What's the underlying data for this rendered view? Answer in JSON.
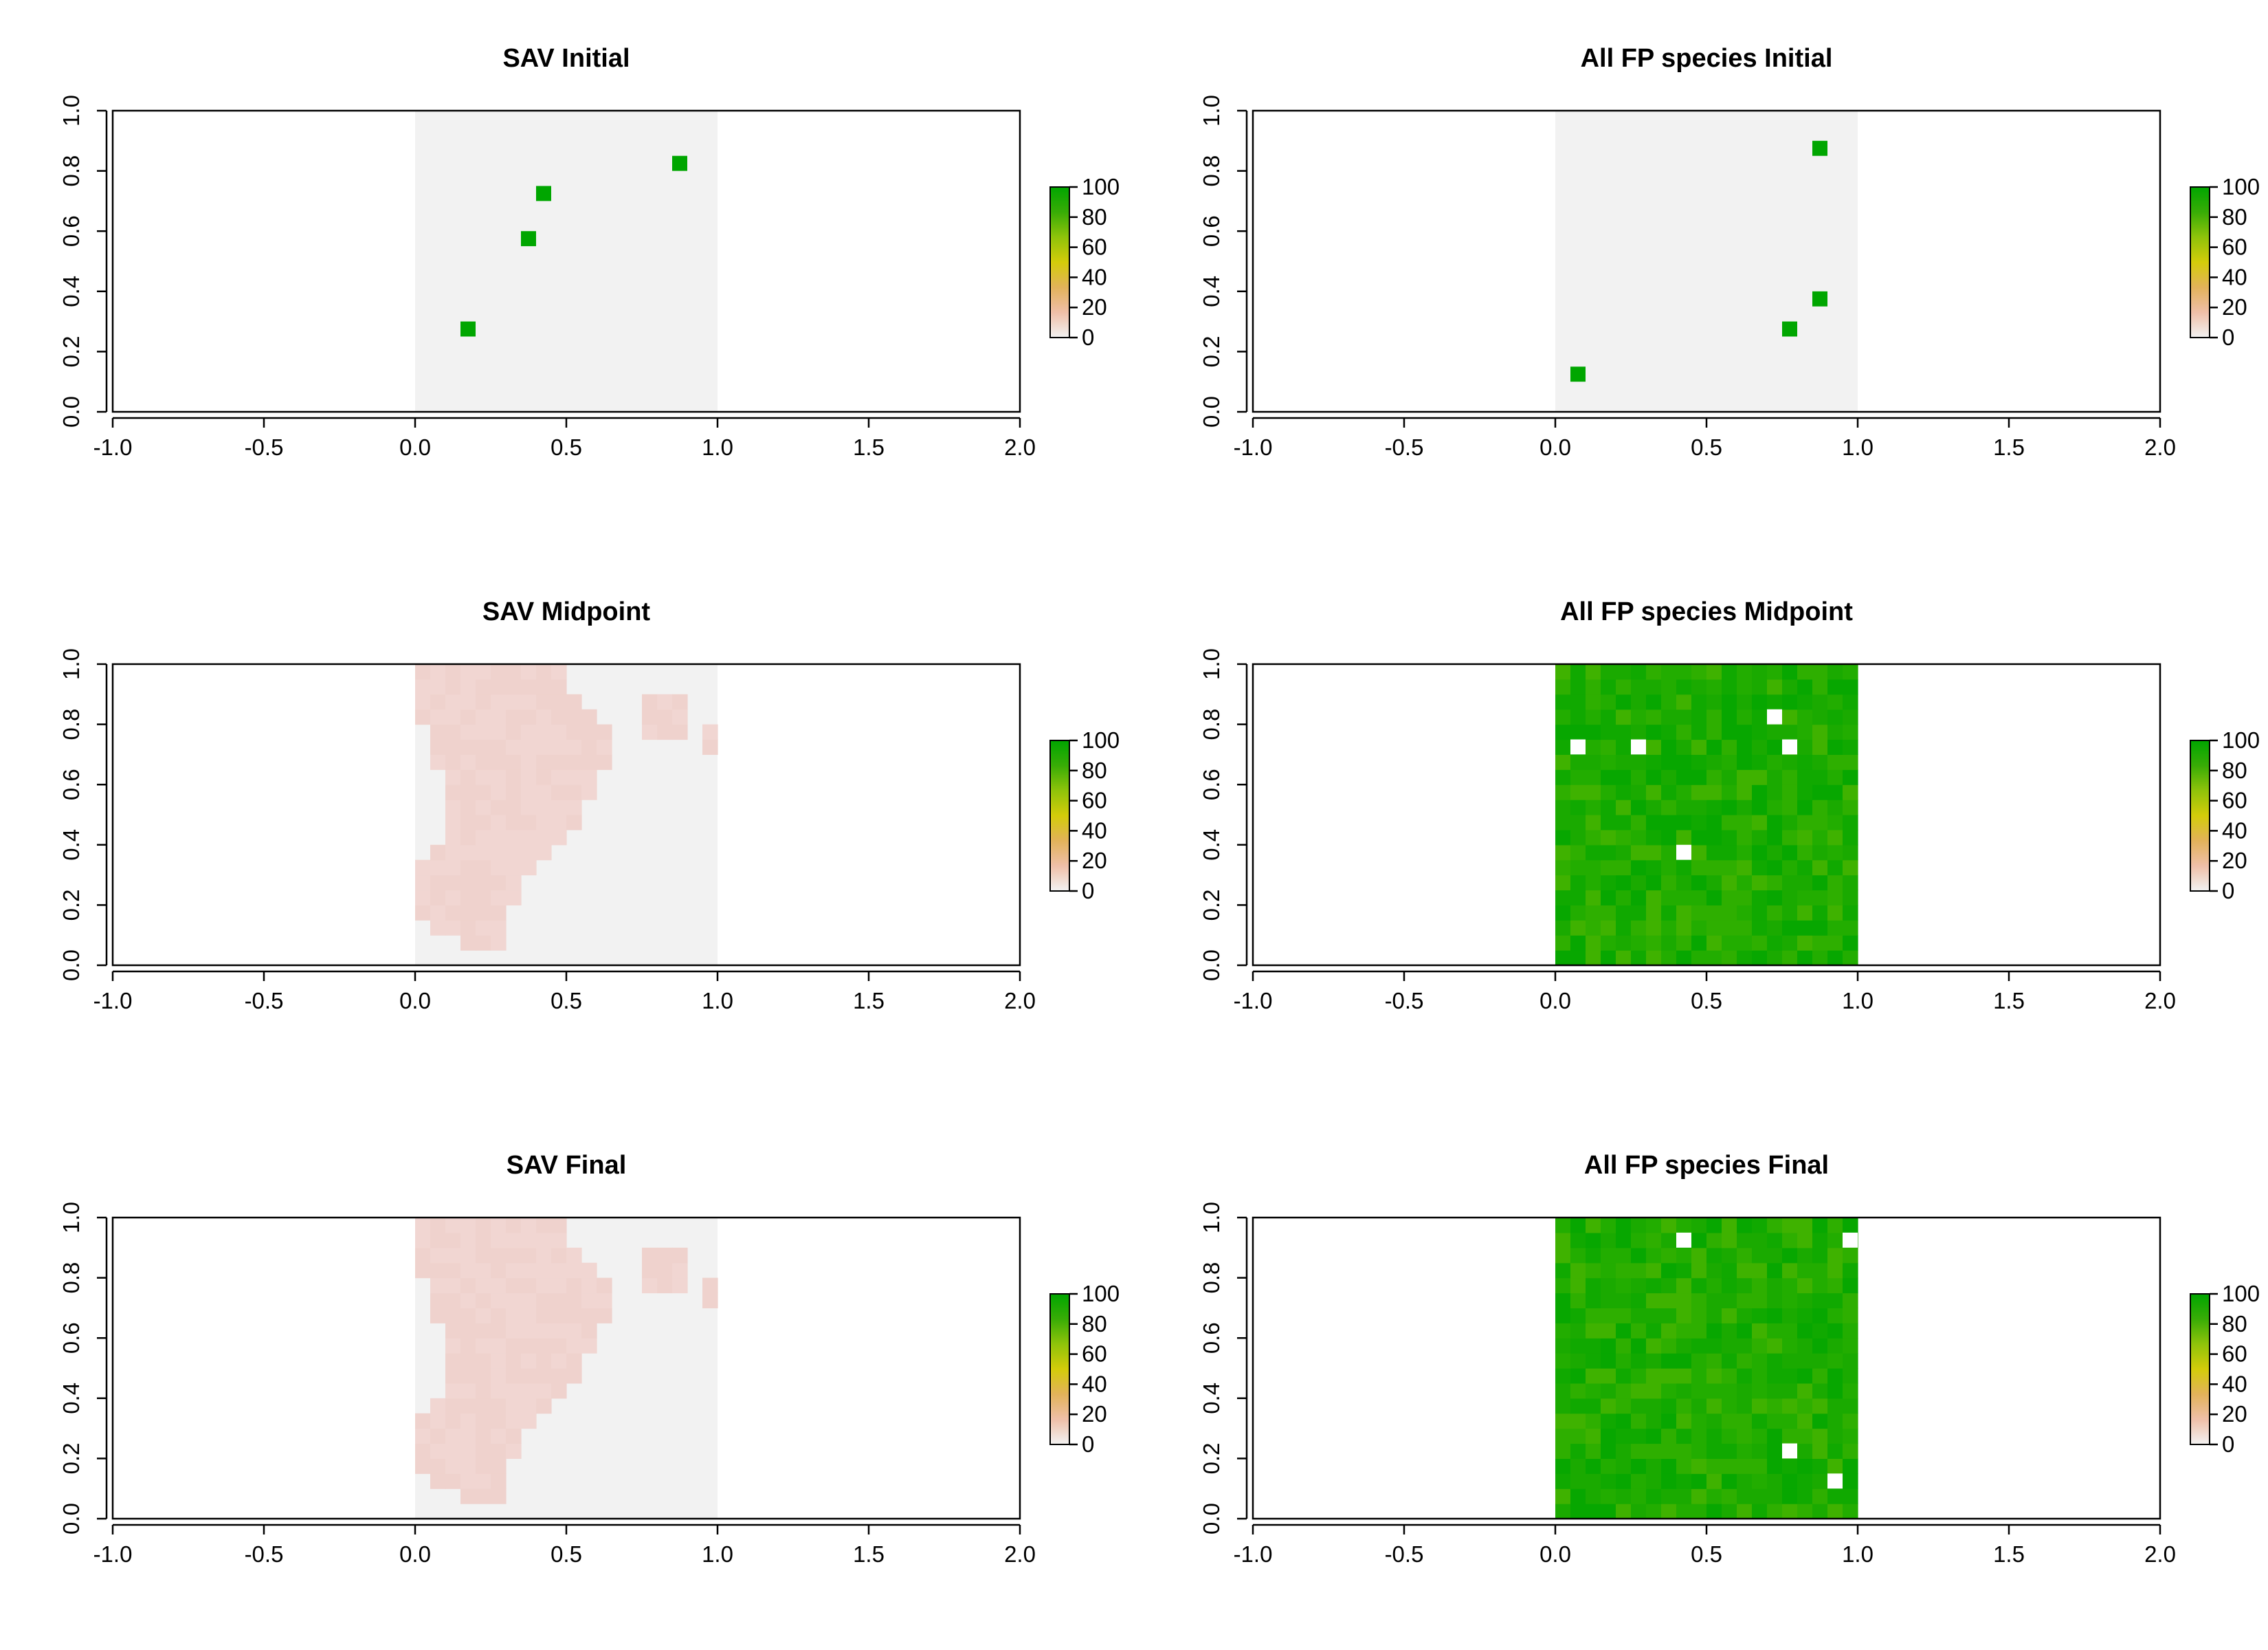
{
  "colors": {
    "background_cell": "#f2f2f2",
    "low_pink": "#f2d7d4",
    "scale_gradient": [
      "#f2f2f2",
      "#efbfa8",
      "#e2b25a",
      "#d4cc0a",
      "#8fc30a",
      "#38ac06",
      "#00a600"
    ],
    "green_dark": "#00a600",
    "white_gap": "#ffffff"
  },
  "chart_data": [
    {
      "type": "heatmap",
      "title": "SAV Initial",
      "xlim": [
        -1.0,
        2.0
      ],
      "ylim": [
        0.0,
        1.0
      ],
      "xticks": [
        "-1.0",
        "-0.5",
        "0.0",
        "0.5",
        "1.0",
        "1.5",
        "2.0"
      ],
      "yticks": [
        "0.0",
        "0.2",
        "0.4",
        "0.6",
        "0.8",
        "1.0"
      ],
      "grid": {
        "nx": 20,
        "ny": 20,
        "x_extent": [
          0.0,
          1.0
        ],
        "y_extent": [
          0.0,
          1.0
        ]
      },
      "background_value": 0,
      "fill": "none",
      "cells": [
        {
          "x": 0.175,
          "y": 0.275,
          "value": 100
        },
        {
          "x": 0.375,
          "y": 0.575,
          "value": 100
        },
        {
          "x": 0.425,
          "y": 0.725,
          "value": 100
        },
        {
          "x": 0.875,
          "y": 0.825,
          "value": 100
        }
      ],
      "legend": {
        "ticks": [
          "100",
          "80",
          "60",
          "40",
          "20",
          "0"
        ],
        "range": [
          0,
          100
        ]
      }
    },
    {
      "type": "heatmap",
      "title": "All FP species Initial",
      "xlim": [
        -1.0,
        2.0
      ],
      "ylim": [
        0.0,
        1.0
      ],
      "xticks": [
        "-1.0",
        "-0.5",
        "0.0",
        "0.5",
        "1.0",
        "1.5",
        "2.0"
      ],
      "yticks": [
        "0.0",
        "0.2",
        "0.4",
        "0.6",
        "0.8",
        "1.0"
      ],
      "grid": {
        "nx": 20,
        "ny": 20,
        "x_extent": [
          0.0,
          1.0
        ],
        "y_extent": [
          0.0,
          1.0
        ]
      },
      "background_value": 0,
      "fill": "none",
      "cells": [
        {
          "x": 0.075,
          "y": 0.125,
          "value": 100
        },
        {
          "x": 0.775,
          "y": 0.275,
          "value": 100
        },
        {
          "x": 0.875,
          "y": 0.375,
          "value": 100
        },
        {
          "x": 0.875,
          "y": 0.875,
          "value": 100
        }
      ],
      "legend": {
        "ticks": [
          "100",
          "80",
          "60",
          "40",
          "20",
          "0"
        ],
        "range": [
          0,
          100
        ]
      }
    },
    {
      "type": "heatmap",
      "title": "SAV Midpoint",
      "xlim": [
        -1.0,
        2.0
      ],
      "ylim": [
        0.0,
        1.0
      ],
      "xticks": [
        "-1.0",
        "-0.5",
        "0.0",
        "0.5",
        "1.0",
        "1.5",
        "2.0"
      ],
      "yticks": [
        "0.0",
        "0.2",
        "0.4",
        "0.6",
        "0.8",
        "1.0"
      ],
      "grid": {
        "nx": 20,
        "ny": 20,
        "x_extent": [
          0.0,
          1.0
        ],
        "y_extent": [
          0.0,
          1.0
        ]
      },
      "background_value": 0,
      "fill": "sav",
      "cells": [],
      "legend": {
        "ticks": [
          "100",
          "80",
          "60",
          "40",
          "20",
          "0"
        ],
        "range": [
          0,
          100
        ]
      }
    },
    {
      "type": "heatmap",
      "title": "All FP species Midpoint",
      "xlim": [
        -1.0,
        2.0
      ],
      "ylim": [
        0.0,
        1.0
      ],
      "xticks": [
        "-1.0",
        "-0.5",
        "0.0",
        "0.5",
        "1.0",
        "1.5",
        "2.0"
      ],
      "yticks": [
        "0.0",
        "0.2",
        "0.4",
        "0.6",
        "0.8",
        "1.0"
      ],
      "grid": {
        "nx": 20,
        "ny": 20,
        "x_extent": [
          0.0,
          1.0
        ],
        "y_extent": [
          0.0,
          1.0
        ]
      },
      "background_value": 0,
      "fill": "green",
      "gaps": [
        {
          "x": 0.075,
          "y": 0.725
        },
        {
          "x": 0.275,
          "y": 0.725
        },
        {
          "x": 0.775,
          "y": 0.725
        },
        {
          "x": 0.725,
          "y": 0.825
        },
        {
          "x": 0.425,
          "y": 0.375
        }
      ],
      "cells": [],
      "legend": {
        "ticks": [
          "100",
          "80",
          "60",
          "40",
          "20",
          "0"
        ],
        "range": [
          0,
          100
        ]
      }
    },
    {
      "type": "heatmap",
      "title": "SAV Final",
      "xlim": [
        -1.0,
        2.0
      ],
      "ylim": [
        0.0,
        1.0
      ],
      "xticks": [
        "-1.0",
        "-0.5",
        "0.0",
        "0.5",
        "1.0",
        "1.5",
        "2.0"
      ],
      "yticks": [
        "0.0",
        "0.2",
        "0.4",
        "0.6",
        "0.8",
        "1.0"
      ],
      "grid": {
        "nx": 20,
        "ny": 20,
        "x_extent": [
          0.0,
          1.0
        ],
        "y_extent": [
          0.0,
          1.0
        ]
      },
      "background_value": 0,
      "fill": "sav",
      "cells": [],
      "legend": {
        "ticks": [
          "100",
          "80",
          "60",
          "40",
          "20",
          "0"
        ],
        "range": [
          0,
          100
        ]
      }
    },
    {
      "type": "heatmap",
      "title": "All FP species Final",
      "xlim": [
        -1.0,
        2.0
      ],
      "ylim": [
        0.0,
        1.0
      ],
      "xticks": [
        "-1.0",
        "-0.5",
        "0.0",
        "0.5",
        "1.0",
        "1.5",
        "2.0"
      ],
      "yticks": [
        "0.0",
        "0.2",
        "0.4",
        "0.6",
        "0.8",
        "1.0"
      ],
      "grid": {
        "nx": 20,
        "ny": 20,
        "x_extent": [
          0.0,
          1.0
        ],
        "y_extent": [
          0.0,
          1.0
        ]
      },
      "background_value": 0,
      "fill": "green",
      "gaps": [
        {
          "x": 0.425,
          "y": 0.925
        },
        {
          "x": 0.975,
          "y": 0.925
        },
        {
          "x": 0.775,
          "y": 0.225
        },
        {
          "x": 0.925,
          "y": 0.125
        }
      ],
      "cells": [],
      "legend": {
        "ticks": [
          "100",
          "80",
          "60",
          "40",
          "20",
          "0"
        ],
        "range": [
          0,
          100
        ]
      }
    }
  ]
}
